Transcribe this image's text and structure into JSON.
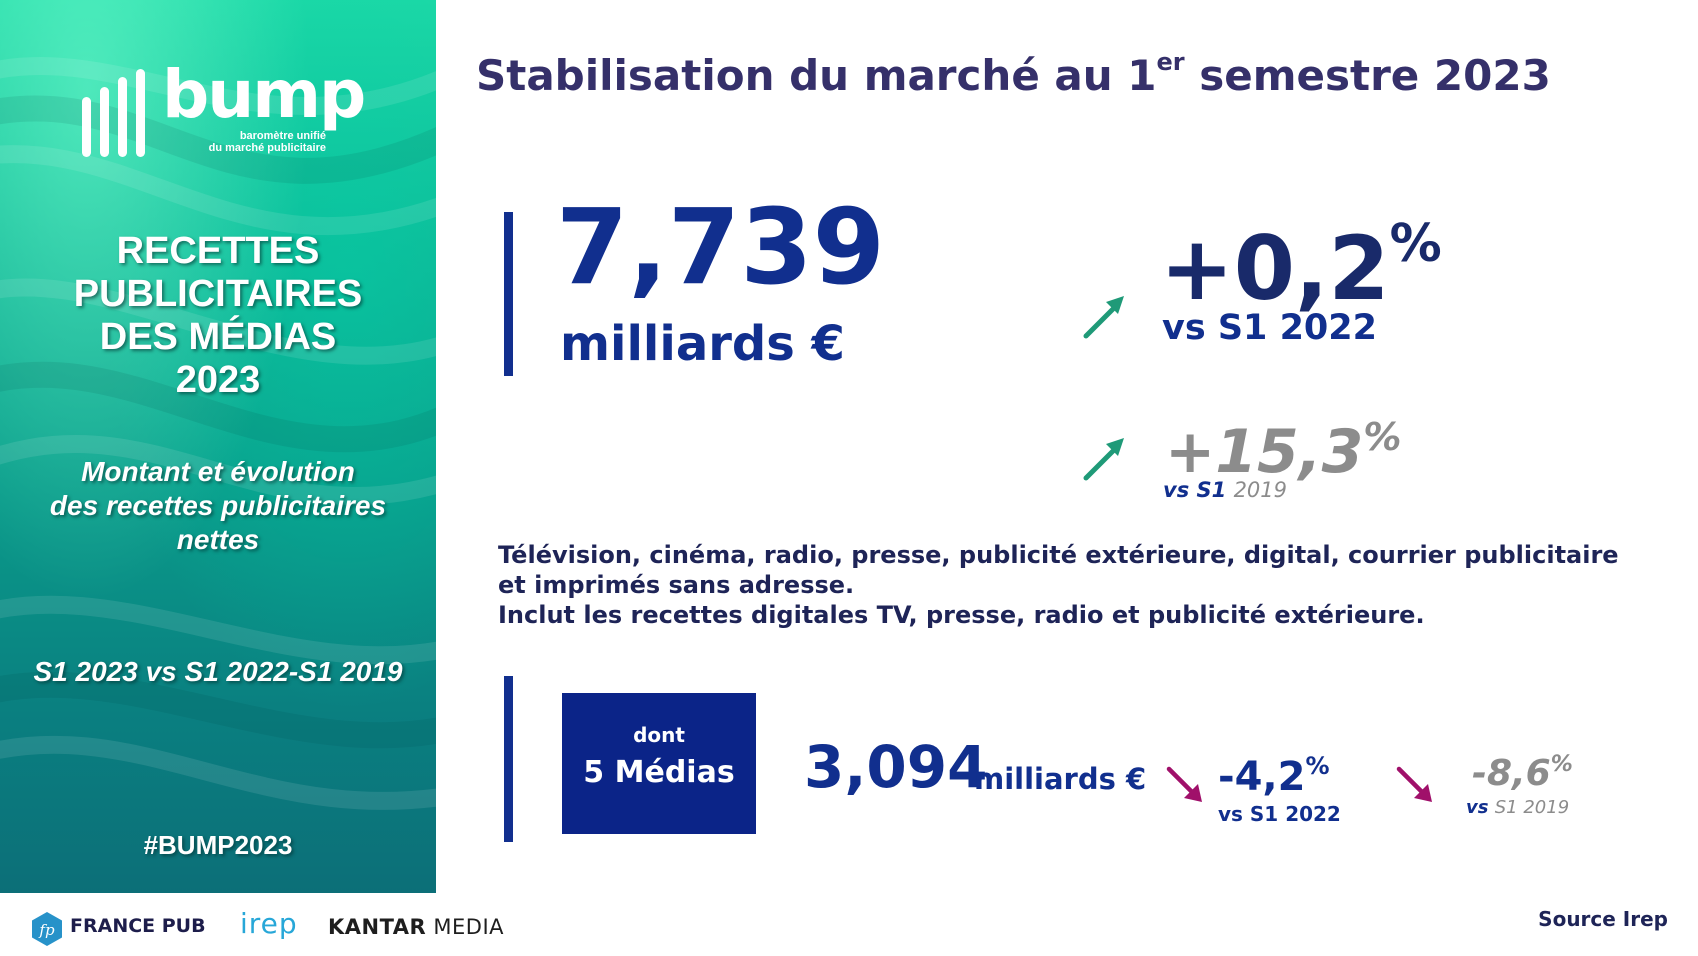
{
  "colors": {
    "brand_navy": "#112f8e",
    "title_purple": "#35306a",
    "teal": "#0fb593",
    "arrow_up": "#1f9a78",
    "arrow_down": "#a0106a",
    "grey": "#8c8c8c"
  },
  "left_panel": {
    "logo": {
      "wordmark": "bump",
      "tagline_line1": "baromètre unifié",
      "tagline_line2": "du marché publicitaire"
    },
    "title_lines": [
      "RECETTES",
      "PUBLICITAIRES",
      "DES MÉDIAS",
      "2023"
    ],
    "subtitle_lines": [
      "Montant et évolution",
      "des recettes publicitaires",
      "nettes"
    ],
    "period": "S1 2023 vs S1 2022-S1 2019",
    "hashtag": "#BUMP2023"
  },
  "header": {
    "title_before": "Stabilisation du marché au 1",
    "title_sup": "er",
    "title_after": " semestre 2023"
  },
  "main_figure": {
    "amount": "7,739",
    "unit": "milliards €"
  },
  "evolutions": [
    {
      "value": "+0,2",
      "suffix": "%",
      "vs_label": "vs S1 2022",
      "direction_icon": "arrow-up-right-icon"
    },
    {
      "value": "+15,3",
      "suffix": "%",
      "vs_prefix": "vs S1",
      "vs_year": "2019",
      "direction_icon": "arrow-up-right-icon"
    }
  ],
  "description": {
    "line1": "Télévision, cinéma, radio, presse, publicité extérieure, digital, courrier publicitaire et imprimés sans adresse.",
    "line2": "Inclut les recettes digitales TV, presse, radio et publicité extérieure."
  },
  "media_block": {
    "box_label_top": "dont",
    "box_label_main": "5 Médias",
    "amount": "3,094",
    "unit": "milliards €",
    "evolutions": [
      {
        "value": "-4,2",
        "suffix": "%",
        "vs_label": "vs S1 2022",
        "direction_icon": "arrow-down-right-icon"
      },
      {
        "value": "-8,6",
        "suffix": "%",
        "vs_prefix": "vs",
        "vs_year": "S1 2019",
        "direction_icon": "arrow-down-right-icon"
      }
    ]
  },
  "footer": {
    "france_pub": "FRANCE PUB",
    "france_pub_icon_text": "fp",
    "irep": "irep",
    "kantar_bold": "KANTAR",
    "kantar_light": "MEDIA",
    "source": "Source Irep"
  }
}
